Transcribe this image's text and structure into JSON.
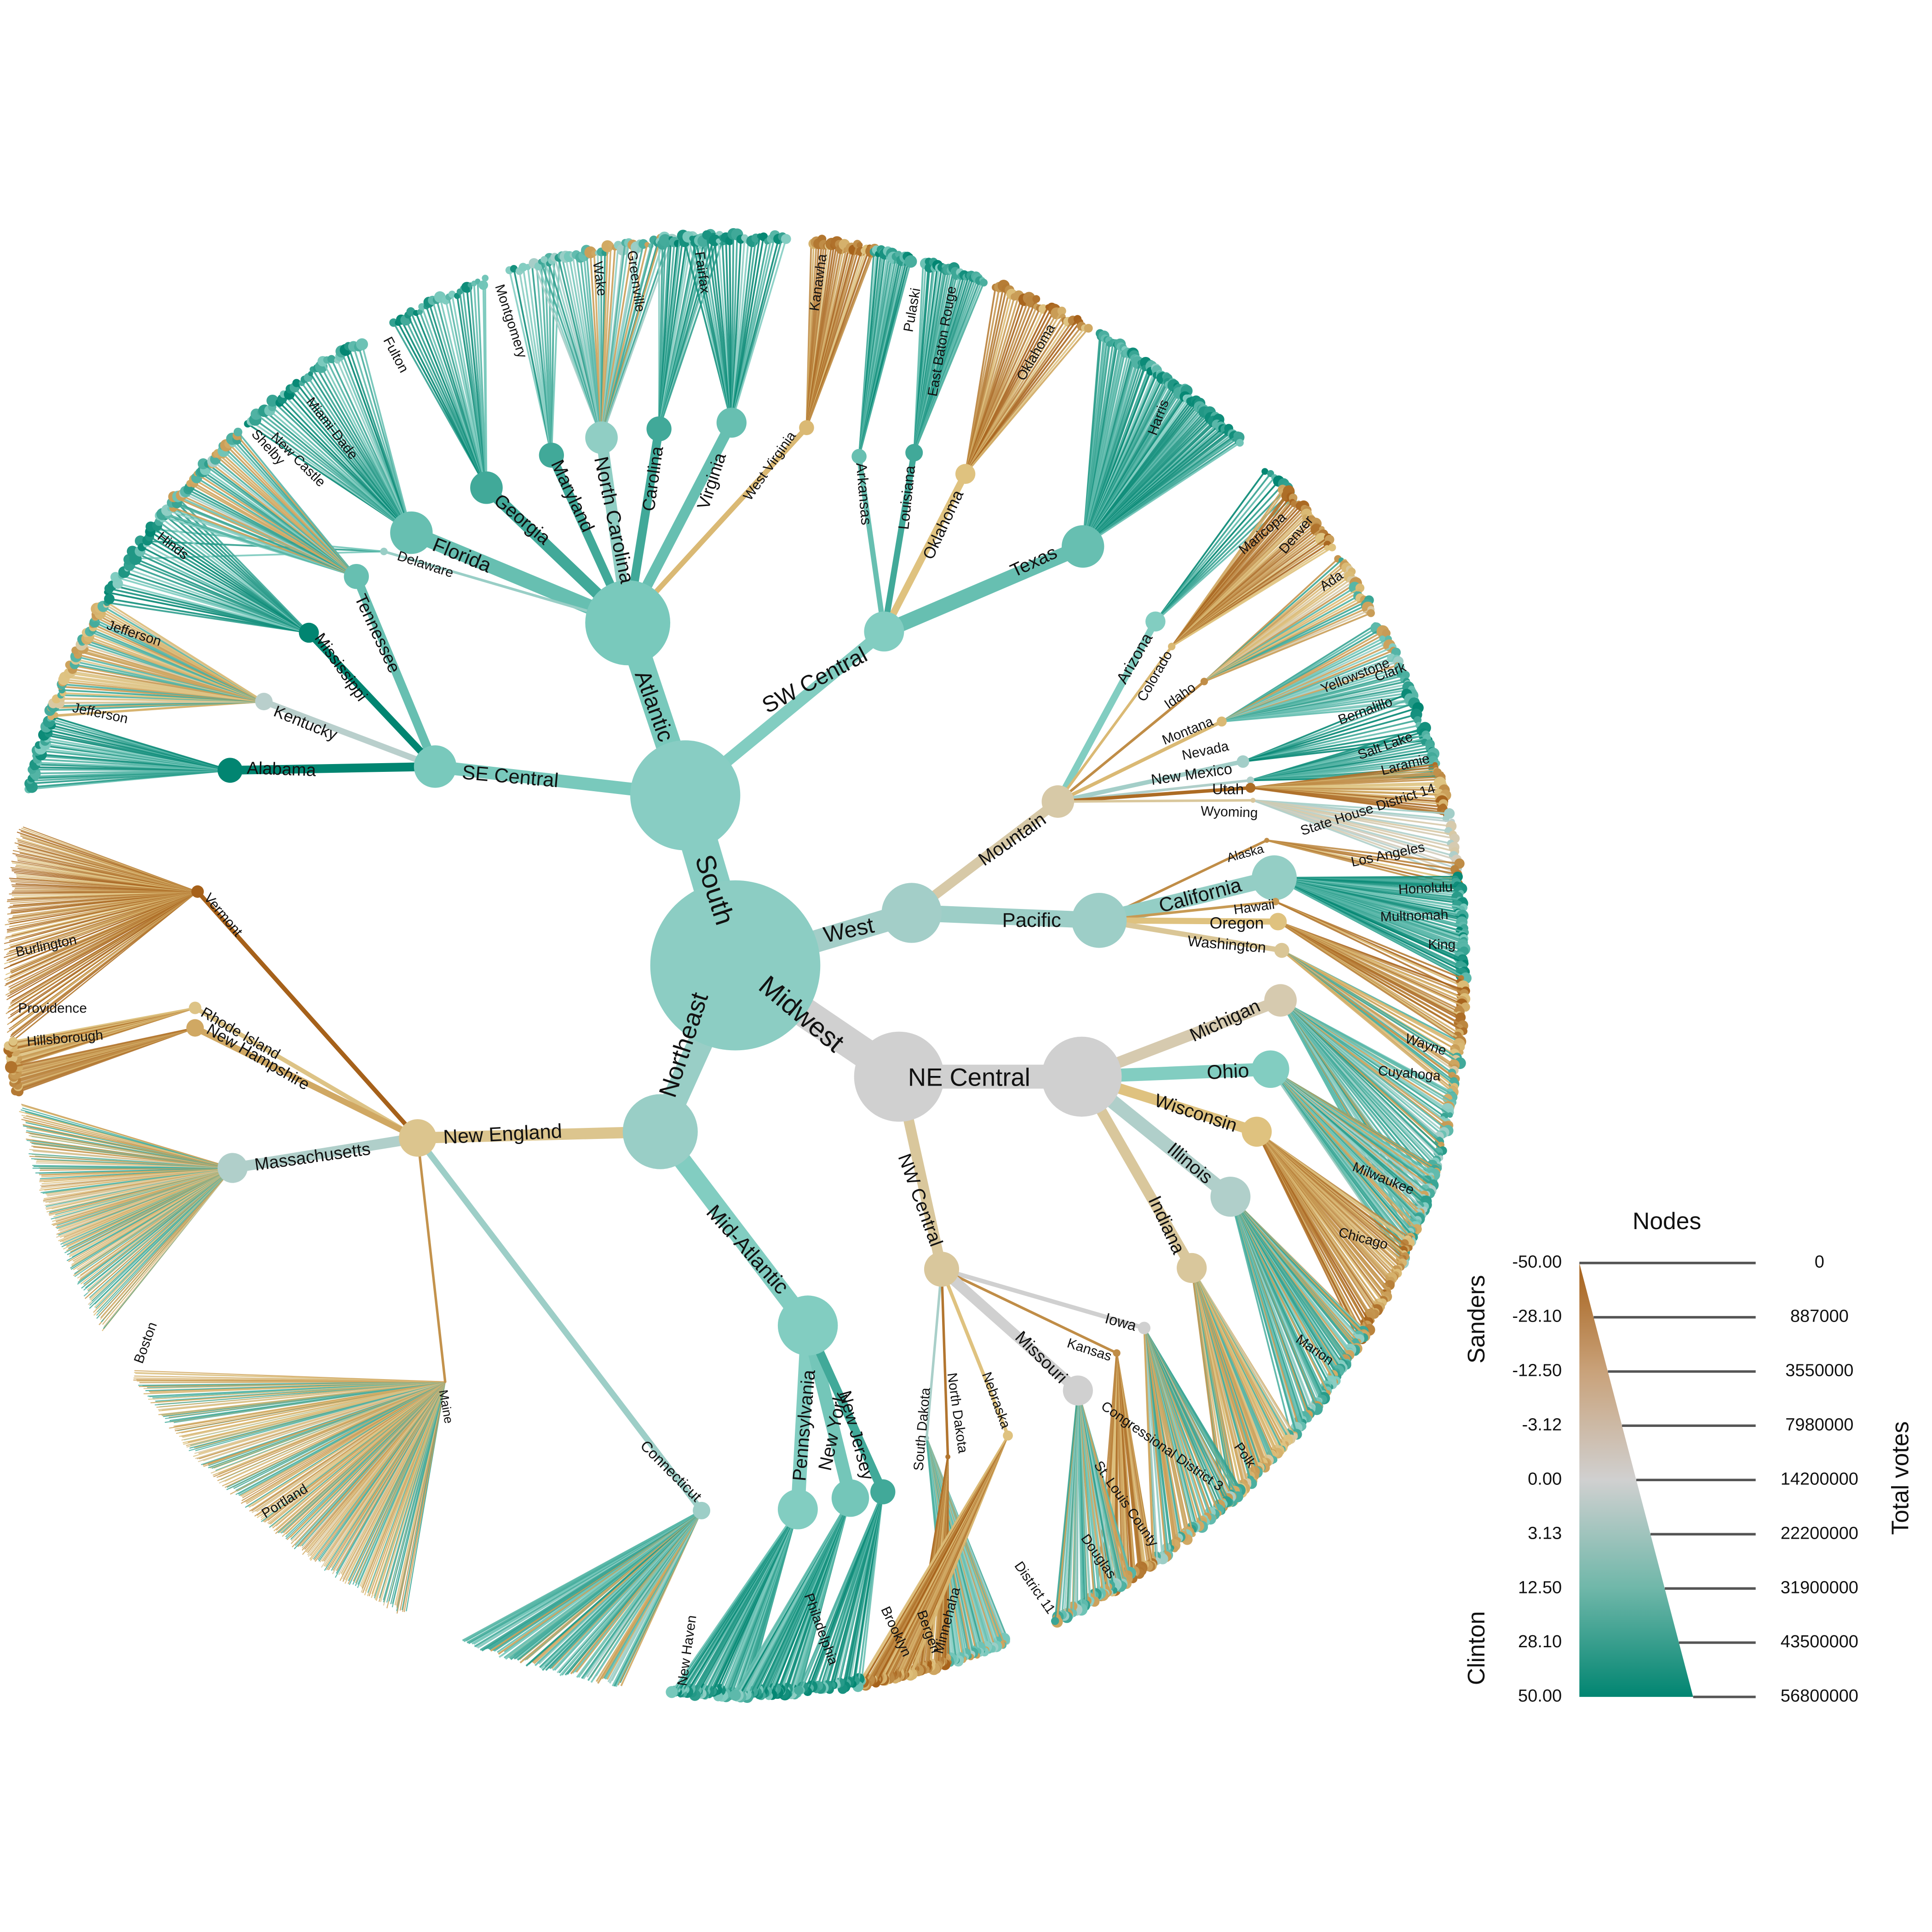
{
  "colors": {
    "sanders": "#a6611a",
    "sanders_light": "#dfc27d",
    "neutral": "#d0d0d0",
    "clinton_light": "#80cdc1",
    "clinton": "#018571"
  },
  "root": {
    "label": "",
    "margin": 9,
    "votes": 56800000
  },
  "regions": [
    {
      "label": "South",
      "margin": 10
    },
    {
      "label": "West",
      "margin": 4
    },
    {
      "label": "Midwest",
      "margin": 0
    },
    {
      "label": "Northeast",
      "margin": 6
    }
  ],
  "divisions": [
    {
      "label": "Atlantic",
      "margin": 14,
      "region": "South"
    },
    {
      "label": "SW Central",
      "margin": 12,
      "region": "South"
    },
    {
      "label": "SE Central",
      "margin": 14,
      "region": "South"
    },
    {
      "label": "Mountain",
      "margin": -3,
      "region": "West"
    },
    {
      "label": "Pacific",
      "margin": 5,
      "region": "West"
    },
    {
      "label": "NE Central",
      "margin": 0,
      "region": "Midwest"
    },
    {
      "label": "NW Central",
      "margin": -5,
      "region": "Midwest"
    },
    {
      "label": "New England",
      "margin": -8,
      "region": "Northeast"
    },
    {
      "label": "Mid-Atlantic",
      "margin": 12,
      "region": "Northeast"
    }
  ],
  "states": [
    {
      "label": "Florida",
      "margin": 18
    },
    {
      "label": "Georgia",
      "margin": 28
    },
    {
      "label": "Maryland",
      "margin": 28
    },
    {
      "label": "North Carolina",
      "margin": 8
    },
    {
      "label": "Carolina",
      "margin": 28
    },
    {
      "label": "Virginia",
      "margin": 18
    },
    {
      "label": "West Virginia",
      "margin": -15
    },
    {
      "label": "Delaware",
      "margin": 6
    },
    {
      "label": "Arkansas",
      "margin": 18
    },
    {
      "label": "Louisiana",
      "margin": 28
    },
    {
      "label": "Oklahoma",
      "margin": -12
    },
    {
      "label": "Texas",
      "margin": 18
    },
    {
      "label": "Alabama",
      "margin": 50
    },
    {
      "label": "Kentucky",
      "margin": 1
    },
    {
      "label": "Mississippi",
      "margin": 50
    },
    {
      "label": "Tennessee",
      "margin": 18
    },
    {
      "label": "Arizona",
      "margin": 12
    },
    {
      "label": "Colorado",
      "margin": -15
    },
    {
      "label": "Idaho",
      "margin": -30
    },
    {
      "label": "Montana",
      "margin": -15
    },
    {
      "label": "Nevada",
      "margin": 4
    },
    {
      "label": "New Mexico",
      "margin": 2
    },
    {
      "label": "Utah",
      "margin": -45
    },
    {
      "label": "Wyoming",
      "margin": -5
    },
    {
      "label": "Alaska",
      "margin": -30
    },
    {
      "label": "California",
      "margin": 7
    },
    {
      "label": "Hawaii",
      "margin": -25
    },
    {
      "label": "Oregon",
      "margin": -12
    },
    {
      "label": "Washington",
      "margin": -6
    },
    {
      "label": "Michigan",
      "margin": -2
    },
    {
      "label": "Ohio",
      "margin": 12
    },
    {
      "label": "Wisconsin",
      "margin": -12
    },
    {
      "label": "Illinois",
      "margin": 2
    },
    {
      "label": "Indiana",
      "margin": -5
    },
    {
      "label": "Iowa",
      "margin": 0
    },
    {
      "label": "Kansas",
      "margin": -30
    },
    {
      "label": "Missouri",
      "margin": 0
    },
    {
      "label": "South Dakota",
      "margin": 3
    },
    {
      "label": "North Dakota",
      "margin": -40
    },
    {
      "label": "Nebraska",
      "margin": -12
    },
    {
      "label": "Vermont",
      "margin": -50
    },
    {
      "label": "Rhode Island",
      "margin": -10
    },
    {
      "label": "New Hampshire",
      "margin": -20
    },
    {
      "label": "Massachusetts",
      "margin": 2
    },
    {
      "label": "Maine",
      "margin": -28
    },
    {
      "label": "Connecticut",
      "margin": 5
    },
    {
      "label": "Pennsylvania",
      "margin": 12
    },
    {
      "label": "New York",
      "margin": 15
    },
    {
      "label": "New Jersey",
      "margin": 28
    }
  ],
  "leaf_labels": [
    "Kanawha",
    "Fairfax",
    "Greenville",
    "Wake",
    "Montgomery",
    "Fulton",
    "Miami-Dade",
    "New Castle",
    "Shelby",
    "Hinds",
    "Jefferson",
    "Jefferson",
    "Burlington",
    "Providence",
    "Hillsborough",
    "Boston",
    "Portland",
    "New Haven",
    "Philadelphia",
    "Brooklyn",
    "Bergen",
    "Minnehaha",
    "District 11",
    "Douglas",
    "St. Louis County",
    "Congressional District 3",
    "Polk",
    "Marion",
    "Chicago",
    "Milwaukee",
    "Cuyahoga",
    "Wayne",
    "King",
    "Multnomah",
    "Honolulu",
    "Los Angeles",
    "State House District 14",
    "Laramie",
    "Salt Lake",
    "Bernalillo",
    "Clark",
    "Yellowstone",
    "Ada",
    "Denver",
    "Maricopa",
    "Harris",
    "Oklahoma",
    "East Baton Rouge",
    "Pulaski"
  ],
  "legend": {
    "title": "Nodes",
    "left_axis_title_top": "Sanders",
    "left_axis_title_bottom": "Clinton",
    "right_axis_title": "Total votes",
    "margin_ticks": [
      "-50.00",
      "-28.10",
      "-12.50",
      "-3.12",
      "0.00",
      "3.13",
      "12.50",
      "28.10",
      "50.00"
    ],
    "vote_ticks": [
      "0",
      "887000",
      "3550000",
      "7980000",
      "14200000",
      "22200000",
      "31900000",
      "43500000",
      "56800000"
    ]
  }
}
